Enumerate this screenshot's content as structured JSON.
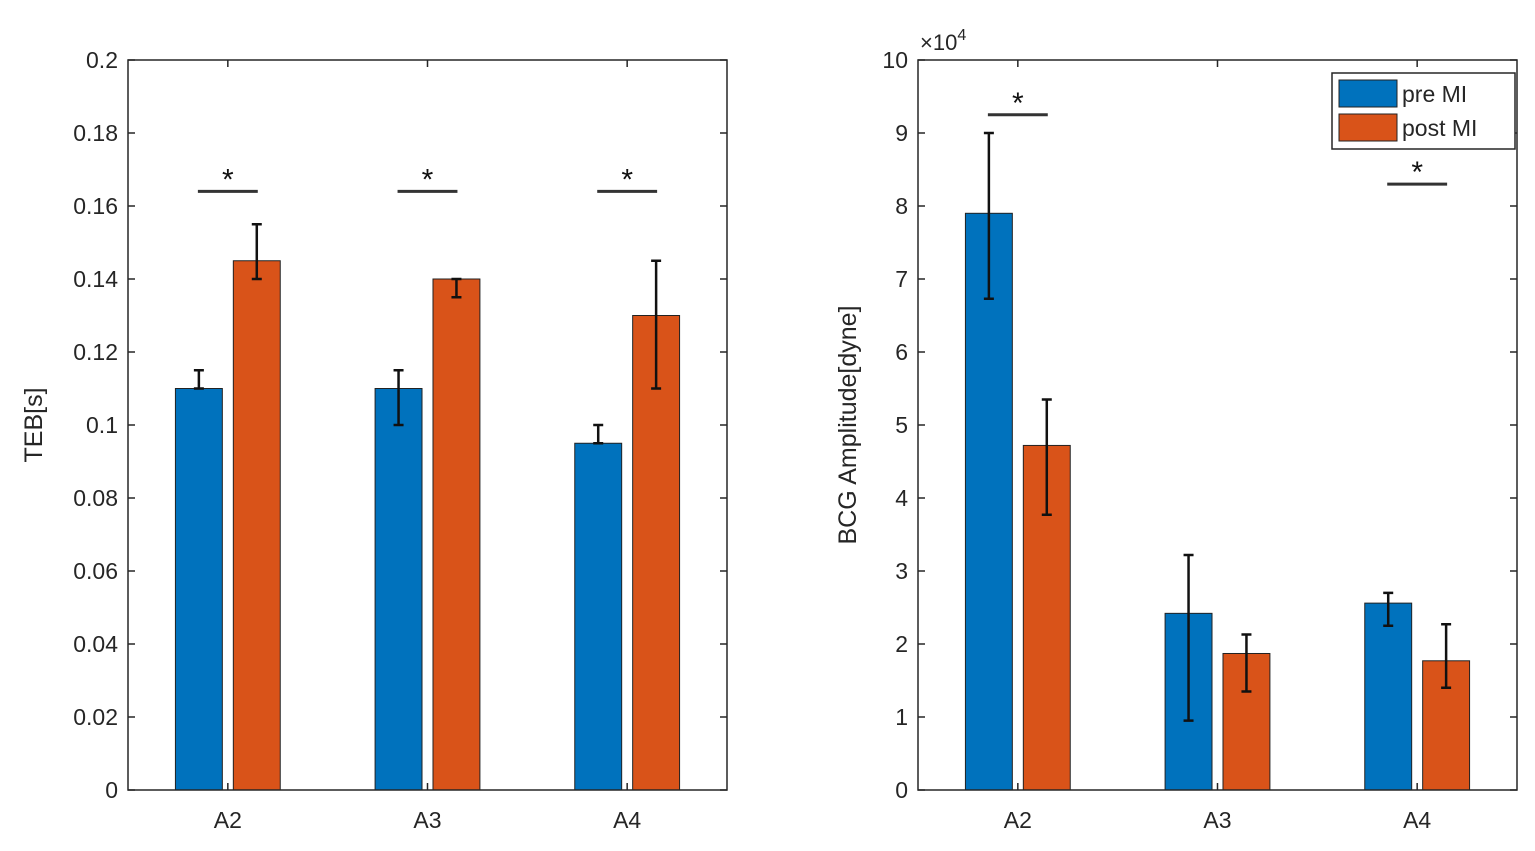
{
  "colors": {
    "pre": "#0072BD",
    "post": "#D95319"
  },
  "chart_data": [
    {
      "type": "bar",
      "title": "",
      "xlabel": "",
      "ylabel": "TEB[s]",
      "categories": [
        "A2",
        "A3",
        "A4"
      ],
      "ylim": [
        0,
        0.2
      ],
      "yticks": [
        "0",
        "0.02",
        "0.04",
        "0.06",
        "0.08",
        "0.1",
        "0.12",
        "0.14",
        "0.16",
        "0.18",
        "0.2"
      ],
      "ytick_values": [
        0,
        0.02,
        0.04,
        0.06,
        0.08,
        0.1,
        0.12,
        0.14,
        0.16,
        0.18,
        0.2
      ],
      "series": [
        {
          "name": "pre MI",
          "values": [
            0.11,
            0.11,
            0.095
          ],
          "err_low": [
            0.11,
            0.1,
            0.095
          ],
          "err_high": [
            0.115,
            0.115,
            0.1
          ]
        },
        {
          "name": "post MI",
          "values": [
            0.145,
            0.14,
            0.13
          ],
          "err_low": [
            0.14,
            0.135,
            0.11
          ],
          "err_high": [
            0.155,
            0.14,
            0.145
          ]
        }
      ],
      "significance": [
        {
          "category": "A2",
          "level": 0.164,
          "label": "*"
        },
        {
          "category": "A3",
          "level": 0.164,
          "label": "*"
        },
        {
          "category": "A4",
          "level": 0.164,
          "label": "*"
        }
      ],
      "exponent": "",
      "legend": null
    },
    {
      "type": "bar",
      "title": "",
      "xlabel": "",
      "ylabel": "BCG Amplitude[dyne]",
      "categories": [
        "A2",
        "A3",
        "A4"
      ],
      "ylim": [
        0,
        10
      ],
      "yticks": [
        "0",
        "1",
        "2",
        "3",
        "4",
        "5",
        "6",
        "7",
        "8",
        "9",
        "10"
      ],
      "ytick_values": [
        0,
        1,
        2,
        3,
        4,
        5,
        6,
        7,
        8,
        9,
        10
      ],
      "series": [
        {
          "name": "pre MI",
          "values": [
            7.9,
            2.42,
            2.56
          ],
          "err_low": [
            6.73,
            0.95,
            2.25
          ],
          "err_high": [
            9.0,
            3.22,
            2.7
          ]
        },
        {
          "name": "post MI",
          "values": [
            4.72,
            1.87,
            1.77
          ],
          "err_low": [
            3.77,
            1.35,
            1.4
          ],
          "err_high": [
            5.35,
            2.13,
            2.27
          ]
        }
      ],
      "significance": [
        {
          "category": "A2",
          "level": 9.25,
          "label": "*"
        },
        {
          "category": "A4",
          "level": 8.3,
          "label": "*"
        }
      ],
      "exponent": "×10",
      "exponent_power": "4",
      "legend": "top-right"
    }
  ]
}
